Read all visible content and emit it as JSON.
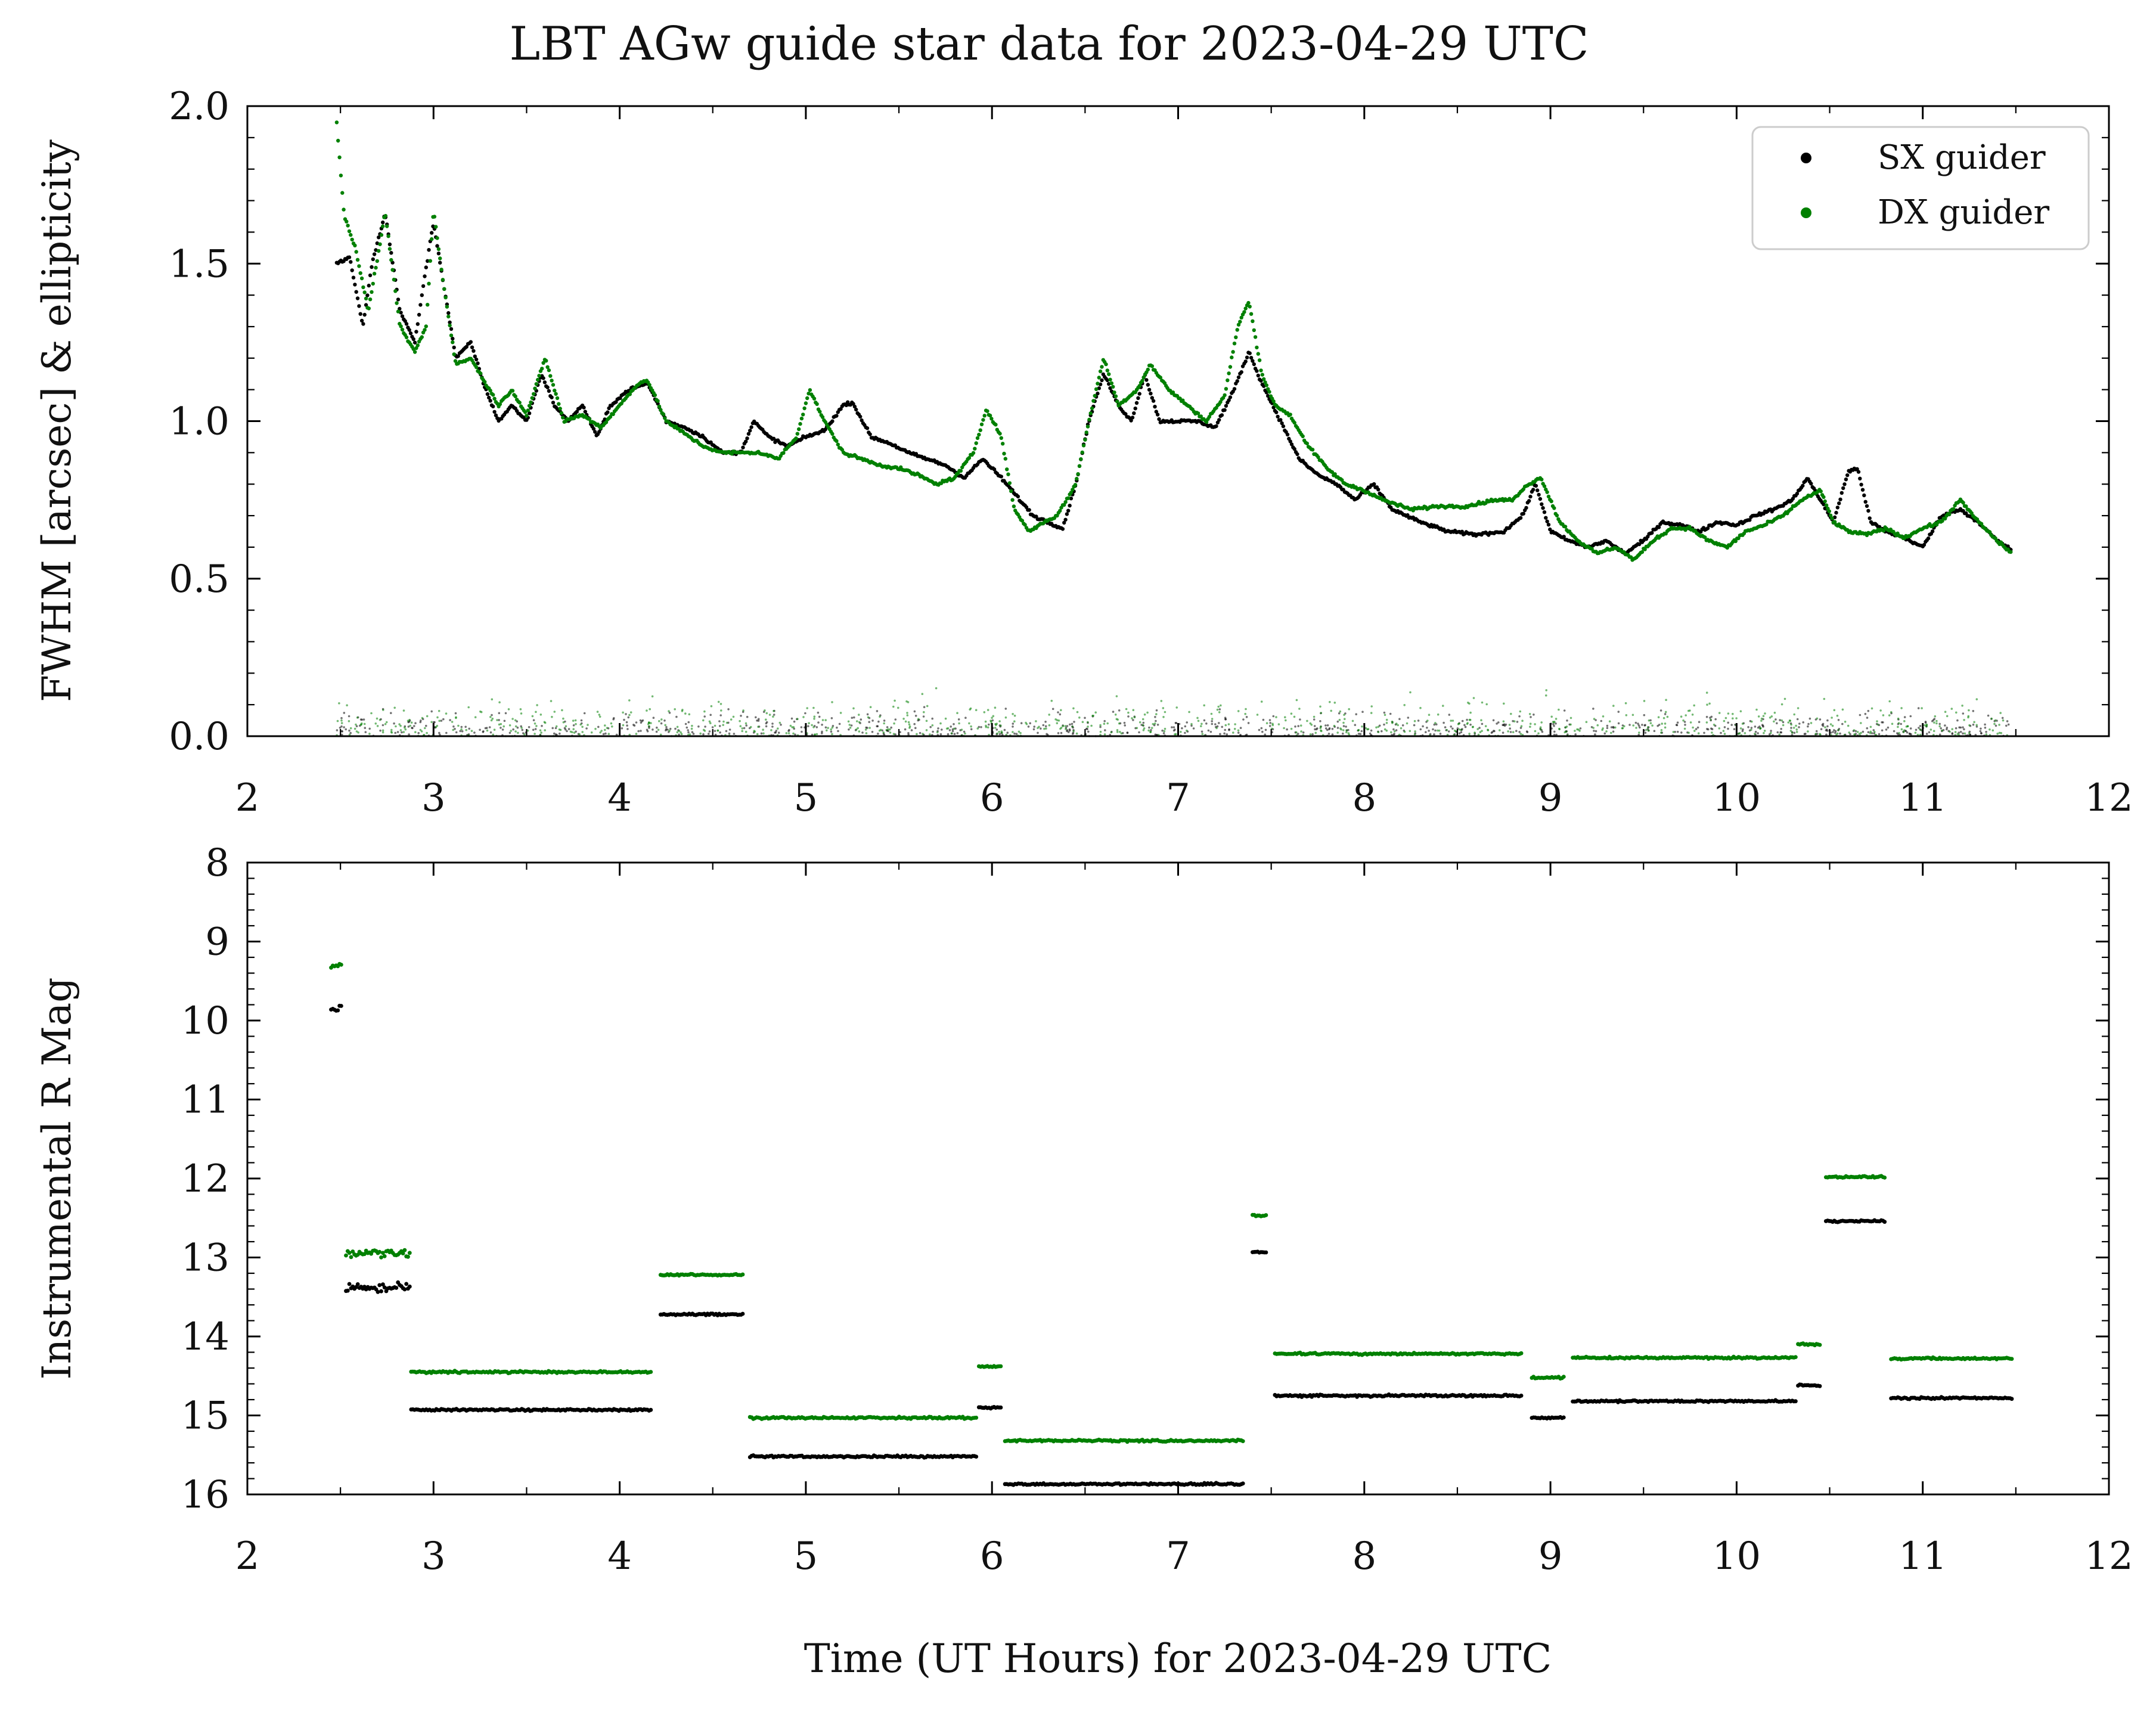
{
  "title": "LBT AGw guide star data for 2023-04-29 UTC",
  "xlabel": "Time (UT Hours) for 2023-04-29 UTC",
  "legend": [
    {
      "label": "SX guider",
      "color": "#000000"
    },
    {
      "label": "DX guider",
      "color": "#008000"
    }
  ],
  "colors": {
    "sx": "#000000",
    "dx": "#008000"
  },
  "chart_data": [
    {
      "type": "scatter",
      "ylabel": "FWHM [arcsec] & ellipticity",
      "xlim": [
        2,
        12
      ],
      "ylim": [
        0.0,
        2.0
      ],
      "x_ticks": [
        "2",
        "3",
        "4",
        "5",
        "6",
        "7",
        "8",
        "9",
        "10",
        "11",
        "12"
      ],
      "y_ticks": [
        "0.0",
        "0.5",
        "1.0",
        "1.5",
        "2.0"
      ],
      "y_tick_values": [
        0.0,
        0.5,
        1.0,
        1.5,
        2.0
      ],
      "legend_position": "top-right",
      "series": [
        {
          "name": "SX guider",
          "color": "#000000",
          "fwhm": {
            "x": [
              2.48,
              2.55,
              2.62,
              2.67,
              2.74,
              2.82,
              2.9,
              2.95,
              3.0,
              3.05,
              3.12,
              3.2,
              3.28,
              3.35,
              3.42,
              3.5,
              3.58,
              3.65,
              3.72,
              3.8,
              3.88,
              3.95,
              4.05,
              4.15,
              4.25,
              4.35,
              4.45,
              4.55,
              4.65,
              4.72,
              4.8,
              4.9,
              5.0,
              5.1,
              5.2,
              5.25,
              5.35,
              5.45,
              5.55,
              5.65,
              5.75,
              5.85,
              5.95,
              6.05,
              6.15,
              6.22,
              6.3,
              6.38,
              6.45,
              6.52,
              6.6,
              6.68,
              6.75,
              6.82,
              6.9,
              7.0,
              7.1,
              7.2,
              7.3,
              7.38,
              7.45,
              7.55,
              7.65,
              7.75,
              7.85,
              7.95,
              8.05,
              8.15,
              8.3,
              8.45,
              8.6,
              8.75,
              8.85,
              8.92,
              9.0,
              9.1,
              9.2,
              9.3,
              9.4,
              9.5,
              9.6,
              9.7,
              9.8,
              9.9,
              10.0,
              10.1,
              10.2,
              10.3,
              10.38,
              10.45,
              10.52,
              10.6,
              10.65,
              10.72,
              10.8,
              10.9,
              11.0,
              11.1,
              11.2,
              11.3,
              11.4,
              11.48
            ],
            "y": [
              1.5,
              1.52,
              1.3,
              1.5,
              1.66,
              1.35,
              1.25,
              1.45,
              1.63,
              1.45,
              1.2,
              1.25,
              1.1,
              1.0,
              1.05,
              1.0,
              1.15,
              1.05,
              1.0,
              1.05,
              0.95,
              1.05,
              1.1,
              1.12,
              1.0,
              0.98,
              0.95,
              0.9,
              0.9,
              1.0,
              0.95,
              0.92,
              0.95,
              0.97,
              1.05,
              1.06,
              0.95,
              0.93,
              0.9,
              0.88,
              0.86,
              0.82,
              0.88,
              0.82,
              0.75,
              0.7,
              0.68,
              0.66,
              0.8,
              1.0,
              1.15,
              1.05,
              1.0,
              1.15,
              1.0,
              1.0,
              1.0,
              0.98,
              1.1,
              1.22,
              1.12,
              1.0,
              0.88,
              0.83,
              0.8,
              0.75,
              0.8,
              0.72,
              0.68,
              0.65,
              0.64,
              0.65,
              0.7,
              0.8,
              0.65,
              0.62,
              0.6,
              0.62,
              0.58,
              0.62,
              0.68,
              0.67,
              0.65,
              0.68,
              0.67,
              0.7,
              0.72,
              0.75,
              0.82,
              0.75,
              0.68,
              0.84,
              0.85,
              0.68,
              0.65,
              0.63,
              0.6,
              0.7,
              0.72,
              0.68,
              0.62,
              0.59
            ]
          },
          "ellipticity_range": [
            0.0,
            0.15
          ]
        },
        {
          "name": "DX guider",
          "color": "#008000",
          "fwhm": {
            "x": [
              2.48,
              2.52,
              2.58,
              2.65,
              2.74,
              2.82,
              2.9,
              2.96,
              3.0,
              3.05,
              3.12,
              3.2,
              3.28,
              3.35,
              3.42,
              3.5,
              3.6,
              3.7,
              3.8,
              3.9,
              4.0,
              4.1,
              4.15,
              4.25,
              4.35,
              4.45,
              4.55,
              4.65,
              4.75,
              4.85,
              4.95,
              5.02,
              5.1,
              5.2,
              5.3,
              5.4,
              5.5,
              5.6,
              5.7,
              5.8,
              5.9,
              5.97,
              6.05,
              6.12,
              6.2,
              6.28,
              6.35,
              6.45,
              6.52,
              6.6,
              6.68,
              6.78,
              6.85,
              6.95,
              7.05,
              7.15,
              7.25,
              7.32,
              7.38,
              7.45,
              7.52,
              7.6,
              7.7,
              7.8,
              7.9,
              8.0,
              8.1,
              8.25,
              8.4,
              8.55,
              8.7,
              8.8,
              8.88,
              8.95,
              9.05,
              9.15,
              9.25,
              9.35,
              9.45,
              9.55,
              9.65,
              9.75,
              9.85,
              9.95,
              10.05,
              10.15,
              10.25,
              10.35,
              10.45,
              10.52,
              10.6,
              10.7,
              10.8,
              10.9,
              11.0,
              11.1,
              11.2,
              11.3,
              11.4,
              11.48
            ],
            "y": [
              1.95,
              1.65,
              1.55,
              1.35,
              1.66,
              1.3,
              1.22,
              1.3,
              1.67,
              1.45,
              1.18,
              1.2,
              1.12,
              1.05,
              1.1,
              1.02,
              1.2,
              1.0,
              1.02,
              0.98,
              1.05,
              1.12,
              1.13,
              1.0,
              0.96,
              0.92,
              0.9,
              0.9,
              0.9,
              0.88,
              0.95,
              1.1,
              1.0,
              0.9,
              0.88,
              0.86,
              0.85,
              0.83,
              0.8,
              0.82,
              0.9,
              1.04,
              0.95,
              0.72,
              0.65,
              0.68,
              0.7,
              0.8,
              1.0,
              1.2,
              1.05,
              1.1,
              1.18,
              1.1,
              1.05,
              1.0,
              1.08,
              1.3,
              1.38,
              1.15,
              1.05,
              1.02,
              0.92,
              0.85,
              0.8,
              0.78,
              0.75,
              0.72,
              0.73,
              0.73,
              0.75,
              0.75,
              0.8,
              0.82,
              0.68,
              0.62,
              0.58,
              0.6,
              0.56,
              0.62,
              0.66,
              0.66,
              0.62,
              0.6,
              0.65,
              0.67,
              0.7,
              0.75,
              0.78,
              0.68,
              0.65,
              0.64,
              0.66,
              0.63,
              0.66,
              0.68,
              0.75,
              0.68,
              0.62,
              0.58
            ]
          },
          "ellipticity_range": [
            0.0,
            0.22
          ]
        }
      ]
    },
    {
      "type": "scatter",
      "ylabel": "Instrumental R Mag",
      "xlim": [
        2,
        12
      ],
      "ylim": [
        16,
        8
      ],
      "y_inverted": true,
      "x_ticks": [
        "2",
        "3",
        "4",
        "5",
        "6",
        "7",
        "8",
        "9",
        "10",
        "11",
        "12"
      ],
      "y_ticks": [
        "8",
        "9",
        "10",
        "11",
        "12",
        "13",
        "14",
        "15",
        "16"
      ],
      "y_tick_values": [
        8,
        9,
        10,
        11,
        12,
        13,
        14,
        15,
        16
      ],
      "series": [
        {
          "name": "SX guider",
          "color": "#000000",
          "segments": [
            {
              "x0": 2.45,
              "x1": 2.51,
              "mag": 9.85
            },
            {
              "x0": 2.53,
              "x1": 2.88,
              "mag": 13.38
            },
            {
              "x0": 2.88,
              "x1": 4.17,
              "mag": 14.93
            },
            {
              "x0": 4.22,
              "x1": 4.67,
              "mag": 13.72
            },
            {
              "x0": 4.7,
              "x1": 5.92,
              "mag": 15.52
            },
            {
              "x0": 5.93,
              "x1": 6.05,
              "mag": 14.9
            },
            {
              "x0": 6.07,
              "x1": 7.35,
              "mag": 15.87
            },
            {
              "x0": 7.4,
              "x1": 7.48,
              "mag": 12.93
            },
            {
              "x0": 7.52,
              "x1": 8.85,
              "mag": 14.75
            },
            {
              "x0": 8.9,
              "x1": 9.08,
              "mag": 15.03
            },
            {
              "x0": 9.12,
              "x1": 10.32,
              "mag": 14.82
            },
            {
              "x0": 10.33,
              "x1": 10.45,
              "mag": 14.62
            },
            {
              "x0": 10.48,
              "x1": 10.8,
              "mag": 12.54
            },
            {
              "x0": 10.83,
              "x1": 11.48,
              "mag": 14.78
            }
          ]
        },
        {
          "name": "DX guider",
          "color": "#008000",
          "segments": [
            {
              "x0": 2.45,
              "x1": 2.51,
              "mag": 9.3
            },
            {
              "x0": 2.53,
              "x1": 2.88,
              "mag": 12.95
            },
            {
              "x0": 2.88,
              "x1": 4.17,
              "mag": 14.45
            },
            {
              "x0": 4.22,
              "x1": 4.67,
              "mag": 13.22
            },
            {
              "x0": 4.7,
              "x1": 5.92,
              "mag": 15.03
            },
            {
              "x0": 5.93,
              "x1": 6.05,
              "mag": 14.38
            },
            {
              "x0": 6.07,
              "x1": 7.35,
              "mag": 15.32
            },
            {
              "x0": 7.4,
              "x1": 7.48,
              "mag": 12.47
            },
            {
              "x0": 7.52,
              "x1": 8.85,
              "mag": 14.22
            },
            {
              "x0": 8.9,
              "x1": 9.08,
              "mag": 14.52
            },
            {
              "x0": 9.12,
              "x1": 10.32,
              "mag": 14.27
            },
            {
              "x0": 10.33,
              "x1": 10.45,
              "mag": 14.1
            },
            {
              "x0": 10.48,
              "x1": 10.8,
              "mag": 11.98
            },
            {
              "x0": 10.83,
              "x1": 11.48,
              "mag": 14.28
            }
          ]
        }
      ]
    }
  ]
}
